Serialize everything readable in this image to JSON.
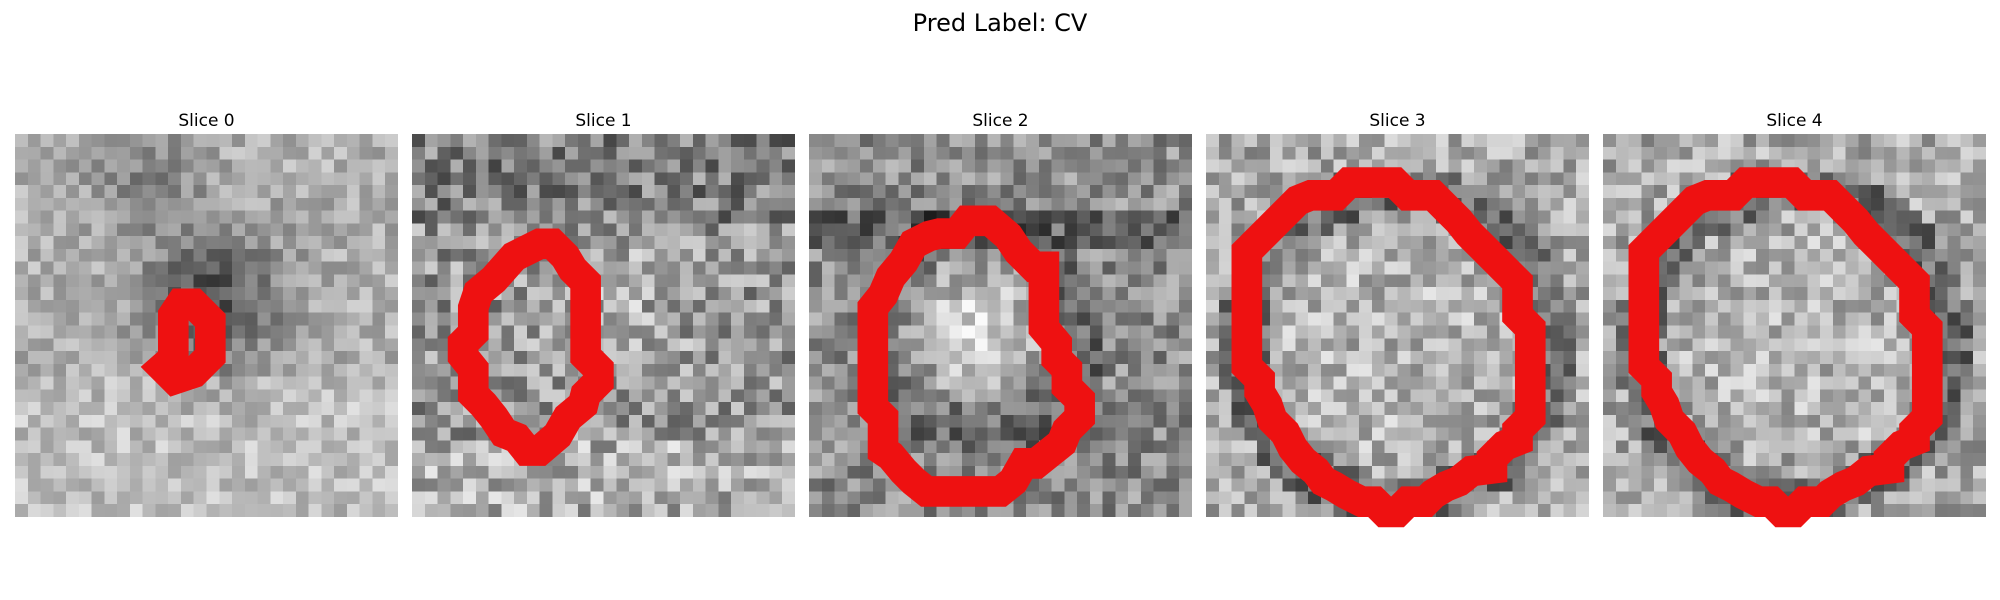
{
  "figure": {
    "title": "Pred Label: CV",
    "contour_color": "#ee1111"
  },
  "panels": [
    {
      "title": "Slice 0",
      "image": "grayscale-patch-dark-blob",
      "overlay": "red-contour-small"
    },
    {
      "title": "Slice 1",
      "image": "grayscale-patch-textured",
      "overlay": "red-contour-elongated"
    },
    {
      "title": "Slice 2",
      "image": "grayscale-patch-bright-center",
      "overlay": "red-contour-medium"
    },
    {
      "title": "Slice 3",
      "image": "grayscale-patch-ring",
      "overlay": "red-contour-large"
    },
    {
      "title": "Slice 4",
      "image": "grayscale-patch-ring",
      "overlay": "red-contour-large"
    }
  ]
}
